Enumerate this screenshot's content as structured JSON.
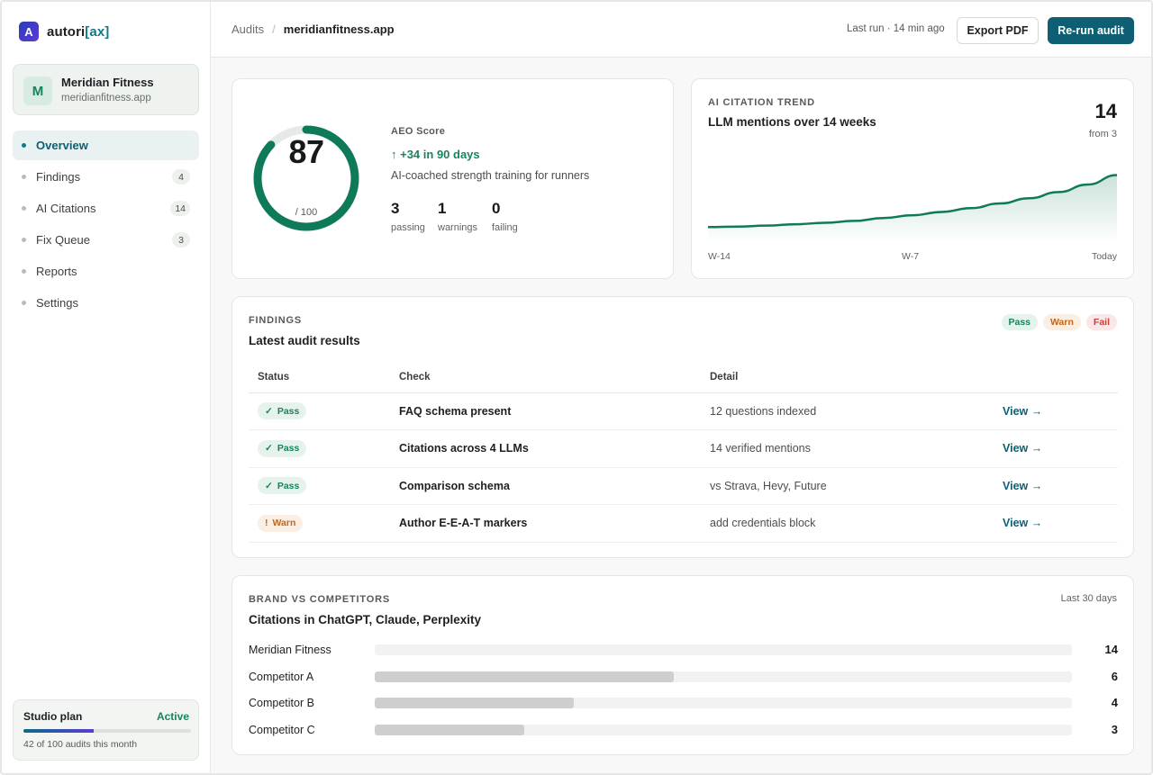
{
  "brand": {
    "mark": "A",
    "name_prefix": "autori",
    "name_suffix": "[ax]"
  },
  "org": {
    "initial": "M",
    "name": "Meridian Fitness",
    "domain": "meridianfitness.app"
  },
  "nav": [
    {
      "label": "Overview",
      "count": "",
      "active": true
    },
    {
      "label": "Findings",
      "count": "4"
    },
    {
      "label": "AI Citations",
      "count": "14"
    },
    {
      "label": "Fix Queue",
      "count": "3"
    },
    {
      "label": "Reports",
      "count": ""
    },
    {
      "label": "Settings",
      "count": ""
    }
  ],
  "plan": {
    "title": "Studio plan",
    "status": "Active",
    "used": 42,
    "total": 100,
    "usage_text": "42 of 100 audits this month"
  },
  "header": {
    "breadcrumb_root": "Audits",
    "breadcrumb_sep": "/",
    "breadcrumb_current": "meridianfitness.app",
    "last_run": "Last run · 14 min ago",
    "export_label": "Export PDF",
    "rerun_label": "Re-run audit"
  },
  "score": {
    "value": 87,
    "value_text": "87",
    "max_text": "/ 100",
    "label": "AEO Score",
    "delta": "↑ +34 in 90 days",
    "tagline": "AI-coached strength training for runners",
    "stats": [
      {
        "value": "3",
        "label": "passing"
      },
      {
        "value": "1",
        "label": "warnings"
      },
      {
        "value": "0",
        "label": "failing"
      }
    ],
    "color": "#0f7a5a"
  },
  "trend": {
    "eyebrow": "AI CITATION TREND",
    "title": "LLM mentions over 14 weeks",
    "current": "14",
    "from": "from 3",
    "ticks": [
      "W-14",
      "W-7",
      "Today"
    ],
    "color": "#0f7a5a"
  },
  "chart_data": {
    "type": "area",
    "x": [
      "W-14",
      "W-13",
      "W-12",
      "W-11",
      "W-10",
      "W-9",
      "W-8",
      "W-7",
      "W-6",
      "W-5",
      "W-4",
      "W-3",
      "W-2",
      "W-1",
      "Today"
    ],
    "series": [
      {
        "values": [
          3,
          3.1,
          3.3,
          3.6,
          3.9,
          4.3,
          4.9,
          5.5,
          6.2,
          7.0,
          8.0,
          9.1,
          10.4,
          12.0,
          14
        ]
      }
    ],
    "ylim": [
      0,
      16
    ],
    "grid": false
  },
  "findings": {
    "eyebrow": "FINDINGS",
    "title": "Latest audit results",
    "legend": [
      "Pass",
      "Warn",
      "Fail"
    ],
    "columns": [
      "Status",
      "Check",
      "Detail",
      ""
    ],
    "rows": [
      {
        "status": "Pass",
        "icon": "✓",
        "kind": "pass",
        "check": "FAQ schema present",
        "detail": "12 questions indexed",
        "action": "View →"
      },
      {
        "status": "Pass",
        "icon": "✓",
        "kind": "pass",
        "check": "Citations across 4 LLMs",
        "detail": "14 verified mentions",
        "action": "View →"
      },
      {
        "status": "Pass",
        "icon": "✓",
        "kind": "pass",
        "check": "Comparison schema",
        "detail": "vs Strava, Hevy, Future",
        "action": "View →"
      },
      {
        "status": "Warn",
        "icon": "!",
        "kind": "warn",
        "check": "Author E-E-A-T markers",
        "detail": "add credentials block",
        "action": "View →"
      }
    ]
  },
  "competitors": {
    "eyebrow": "BRAND vs COMPETITORS",
    "title": "Citations in ChatGPT, Claude, Perplexity",
    "range": "Last 30 days",
    "max": 14,
    "rows": [
      {
        "name": "Meridian Fitness",
        "value": 14,
        "value_text": "14",
        "brand": true
      },
      {
        "name": "Competitor A",
        "value": 6,
        "value_text": "6"
      },
      {
        "name": "Competitor B",
        "value": 4,
        "value_text": "4"
      },
      {
        "name": "Competitor C",
        "value": 3,
        "value_text": "3"
      }
    ]
  }
}
